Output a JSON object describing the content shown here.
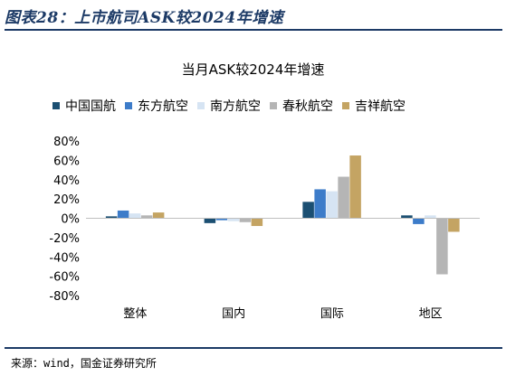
{
  "figure_title": "图表28：上市航司ASK较2024年增速",
  "source": "来源：wind，国金证券研究所",
  "chart_data": {
    "type": "bar",
    "title": "当月ASK较2024年增速",
    "categories": [
      "整体",
      "国内",
      "国际",
      "地区"
    ],
    "series": [
      {
        "name": "中国国航",
        "color": "#1b4f72",
        "values": [
          2,
          -5,
          17,
          3
        ]
      },
      {
        "name": "东方航空",
        "color": "#3d7cc9",
        "values": [
          8,
          -2,
          30,
          -6
        ]
      },
      {
        "name": "南方航空",
        "color": "#d6e4f3",
        "values": [
          5,
          -3,
          28,
          3
        ]
      },
      {
        "name": "春秋航空",
        "color": "#b5b5b5",
        "values": [
          3,
          -4,
          43,
          -58
        ]
      },
      {
        "name": "吉祥航空",
        "color": "#c4a463",
        "values": [
          6,
          -8,
          65,
          -14
        ]
      }
    ],
    "ylim": [
      -80,
      80
    ],
    "yticks": [
      "80%",
      "60%",
      "40%",
      "20%",
      "0%",
      "-20%",
      "-40%",
      "-60%",
      "-80%"
    ],
    "legend_position": "top"
  }
}
